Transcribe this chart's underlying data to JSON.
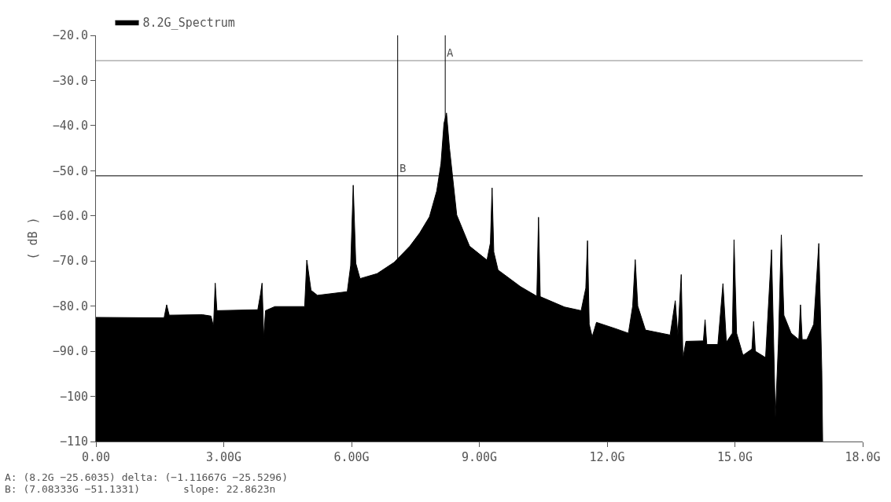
{
  "chart_data": {
    "type": "area",
    "ylabel": "( dB )",
    "series": [
      {
        "name": "8.2G_Spectrum",
        "color": "#000000",
        "x": [
          0,
          0,
          1.6,
          1.66,
          1.72,
          2.5,
          2.7,
          2.76,
          2.8,
          2.84,
          3.8,
          3.86,
          3.9,
          3.94,
          3.98,
          4.2,
          4.9,
          4.95,
          5.05,
          5.2,
          5.9,
          5.98,
          6.04,
          6.1,
          6.2,
          6.6,
          7.0,
          7.37,
          7.6,
          7.83,
          8.0,
          8.1,
          8.17,
          8.23,
          8.3,
          8.47,
          8.77,
          9.18,
          9.26,
          9.3,
          9.34,
          9.44,
          9.97,
          10.35,
          10.39,
          10.43,
          11.0,
          11.39,
          11.5,
          11.54,
          11.58,
          11.65,
          11.75,
          12.2,
          12.5,
          12.6,
          12.66,
          12.72,
          12.9,
          13.48,
          13.6,
          13.66,
          13.74,
          13.78,
          13.85,
          14.26,
          14.3,
          14.34,
          14.6,
          14.72,
          14.8,
          14.94,
          14.98,
          15.04,
          15.19,
          15.4,
          15.44,
          15.48,
          15.72,
          15.86,
          15.95,
          16.02,
          16.09,
          16.15,
          16.32,
          16.5,
          16.54,
          16.58,
          16.69,
          16.85,
          16.97,
          17.04,
          17.06
        ],
        "values": [
          -110,
          -82.5,
          -82.6,
          -79.7,
          -82.0,
          -81.9,
          -82.2,
          -84.5,
          -74.9,
          -81.0,
          -80.8,
          -77.5,
          -74.9,
          -87,
          -81,
          -80.1,
          -80.1,
          -69.8,
          -76.5,
          -77.6,
          -76.8,
          -71,
          -53.2,
          -70.5,
          -73.9,
          -72.8,
          -70.3,
          -66.7,
          -63.8,
          -60.2,
          -54.5,
          -48.4,
          -39.5,
          -37.2,
          -45,
          -59.8,
          -66.7,
          -69.8,
          -66,
          -53.8,
          -68,
          -72,
          -75.7,
          -77.8,
          -60.3,
          -77.9,
          -80.2,
          -81,
          -76,
          -65.5,
          -84,
          -86.8,
          -83.6,
          -85,
          -86,
          -80,
          -69.7,
          -80,
          -85.3,
          -86.4,
          -78.8,
          -86.5,
          -73,
          -91.6,
          -87.8,
          -87.7,
          -83,
          -88.5,
          -88.5,
          -75,
          -88,
          -86,
          -65.3,
          -86,
          -90.9,
          -89.5,
          -83.4,
          -90,
          -91.4,
          -67.5,
          -104.7,
          -88.4,
          -64.2,
          -82,
          -86,
          -87.4,
          -79.7,
          -87.4,
          -87.4,
          -84,
          -66.1,
          -94.3,
          -110
        ]
      }
    ],
    "xlim": [
      0,
      18
    ],
    "xticks": [
      {
        "value": 0,
        "label": "0.00"
      },
      {
        "value": 3,
        "label": "3.00G"
      },
      {
        "value": 6,
        "label": "6.00G"
      },
      {
        "value": 9,
        "label": "9.00G"
      },
      {
        "value": 12,
        "label": "12.0G"
      },
      {
        "value": 15,
        "label": "15.0G"
      },
      {
        "value": 18,
        "label": "18.0G"
      }
    ],
    "ylim": [
      -110,
      -20
    ],
    "yticks": [
      {
        "value": -20,
        "label": "−20.0"
      },
      {
        "value": -30,
        "label": "−30.0"
      },
      {
        "value": -40,
        "label": "−40.0"
      },
      {
        "value": -50,
        "label": "−50.0"
      },
      {
        "value": -60,
        "label": "−60.0"
      },
      {
        "value": -70,
        "label": "−70.0"
      },
      {
        "value": -80,
        "label": "−80.0"
      },
      {
        "value": -90,
        "label": "−90.0"
      },
      {
        "value": -100,
        "label": "−100"
      },
      {
        "value": -110,
        "label": "−110"
      }
    ],
    "ref_lines": [
      {
        "axis": "y",
        "value": -25.6035,
        "label": null,
        "color": "#888888"
      },
      {
        "axis": "y",
        "value": -51.1331,
        "label": null,
        "color": "#000000"
      },
      {
        "axis": "x",
        "value": 8.2,
        "label": "A",
        "color": "#000000"
      },
      {
        "axis": "x",
        "value": 7.08333,
        "label": "B",
        "color": "#000000"
      }
    ],
    "annotations": [
      "A: (8.2G −25.6035) delta: (−1.11667G −25.5296)",
      "B: (7.08333G −51.1331)       slope: 22.8623n"
    ],
    "legend": "top left"
  }
}
